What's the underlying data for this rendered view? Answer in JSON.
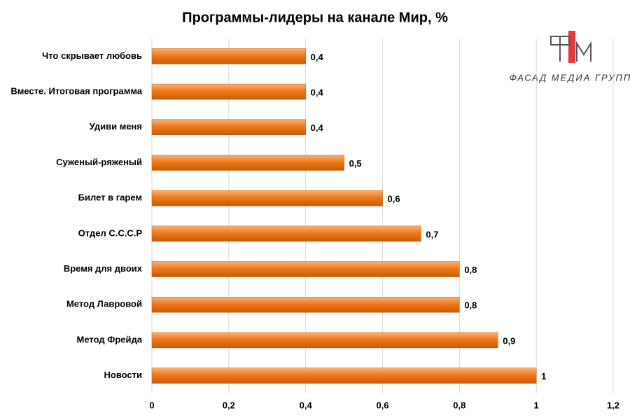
{
  "chart_data": {
    "type": "bar",
    "orientation": "horizontal",
    "title": "Программы-лидеры на канале Мир, %",
    "logo": "ФАСАД МЕДИА ГРУПП",
    "categories": [
      "Что скрывает любовь",
      "Вместе. Итоговая программа",
      "Удиви меня",
      "Суженый-ряженый",
      "Билет в гарем",
      "Отдел С.С.С.Р",
      "Время для двоих",
      "Метод Лавровой",
      "Метод Фрейда",
      "Новости"
    ],
    "values": [
      0.4,
      0.4,
      0.4,
      0.5,
      0.6,
      0.7,
      0.8,
      0.8,
      0.9,
      1
    ],
    "value_labels": [
      "0,4",
      "0,4",
      "0,4",
      "0,5",
      "0,6",
      "0,7",
      "0,8",
      "0,8",
      "0,9",
      "1"
    ],
    "color": "#f07a1a",
    "xlim": [
      0,
      1.2
    ],
    "xticks": [
      0,
      {
        "value": 0.2,
        "label": "0,2"
      },
      {
        "value": 0.4,
        "label": "0,4"
      },
      {
        "value": 0.6,
        "label": "0,6"
      },
      {
        "value": 0.8,
        "label": "0,8"
      },
      1,
      {
        "value": 1.2,
        "label": "1,2"
      }
    ],
    "grid": true
  }
}
